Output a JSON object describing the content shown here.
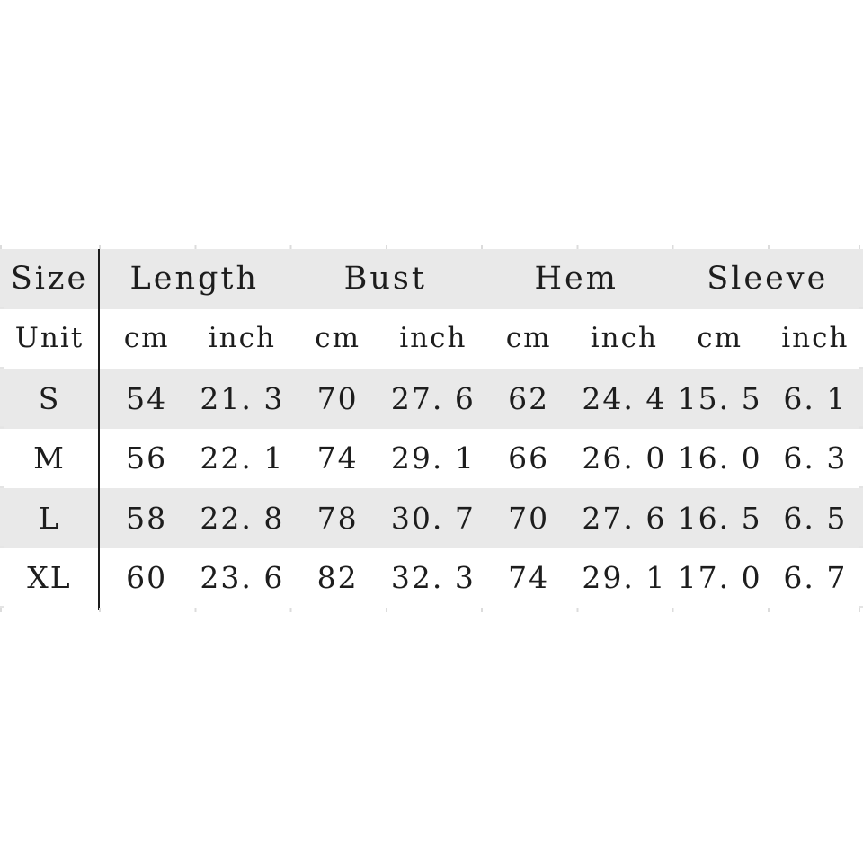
{
  "colors": {
    "background": "#ffffff",
    "row_band": "#e9e9e9",
    "text": "#1d1d1d",
    "divider": "#1d1d1d",
    "border_tick": "#dcdcdc"
  },
  "table": {
    "header": {
      "size_label": "Size",
      "groups": [
        "Length",
        "Bust",
        "Hem",
        "Sleeve"
      ]
    },
    "unit_row": {
      "label": "Unit",
      "units": [
        "cm",
        "inch",
        "cm",
        "inch",
        "cm",
        "inch",
        "cm",
        "inch"
      ]
    },
    "rows": [
      {
        "size": "S",
        "values": [
          "54",
          "21. 3",
          "70",
          "27. 6",
          "62",
          "24. 4",
          "15. 5",
          "6. 1"
        ]
      },
      {
        "size": "M",
        "values": [
          "56",
          "22. 1",
          "74",
          "29. 1",
          "66",
          "26. 0",
          "16. 0",
          "6. 3"
        ]
      },
      {
        "size": "L",
        "values": [
          "58",
          "22. 8",
          "78",
          "30. 7",
          "70",
          "27. 6",
          "16. 5",
          "6. 5"
        ]
      },
      {
        "size": "XL",
        "values": [
          "60",
          "23. 6",
          "82",
          "32. 3",
          "74",
          "29. 1",
          "17. 0",
          "6. 7"
        ]
      }
    ]
  },
  "chart_data": {
    "type": "table",
    "columns": [
      "Size",
      "Length cm",
      "Length inch",
      "Bust cm",
      "Bust inch",
      "Hem cm",
      "Hem inch",
      "Sleeve cm",
      "Sleeve inch"
    ],
    "rows": [
      [
        "S",
        54,
        21.3,
        70,
        27.6,
        62,
        24.4,
        15.5,
        6.1
      ],
      [
        "M",
        56,
        22.1,
        74,
        29.1,
        66,
        26.0,
        16.0,
        6.3
      ],
      [
        "L",
        58,
        22.8,
        78,
        30.7,
        70,
        27.6,
        16.5,
        6.5
      ],
      [
        "XL",
        60,
        23.6,
        82,
        32.3,
        74,
        29.1,
        17.0,
        6.7
      ]
    ],
    "layout": {
      "header_band": true,
      "zebra_banding": true,
      "grid": "off"
    }
  }
}
